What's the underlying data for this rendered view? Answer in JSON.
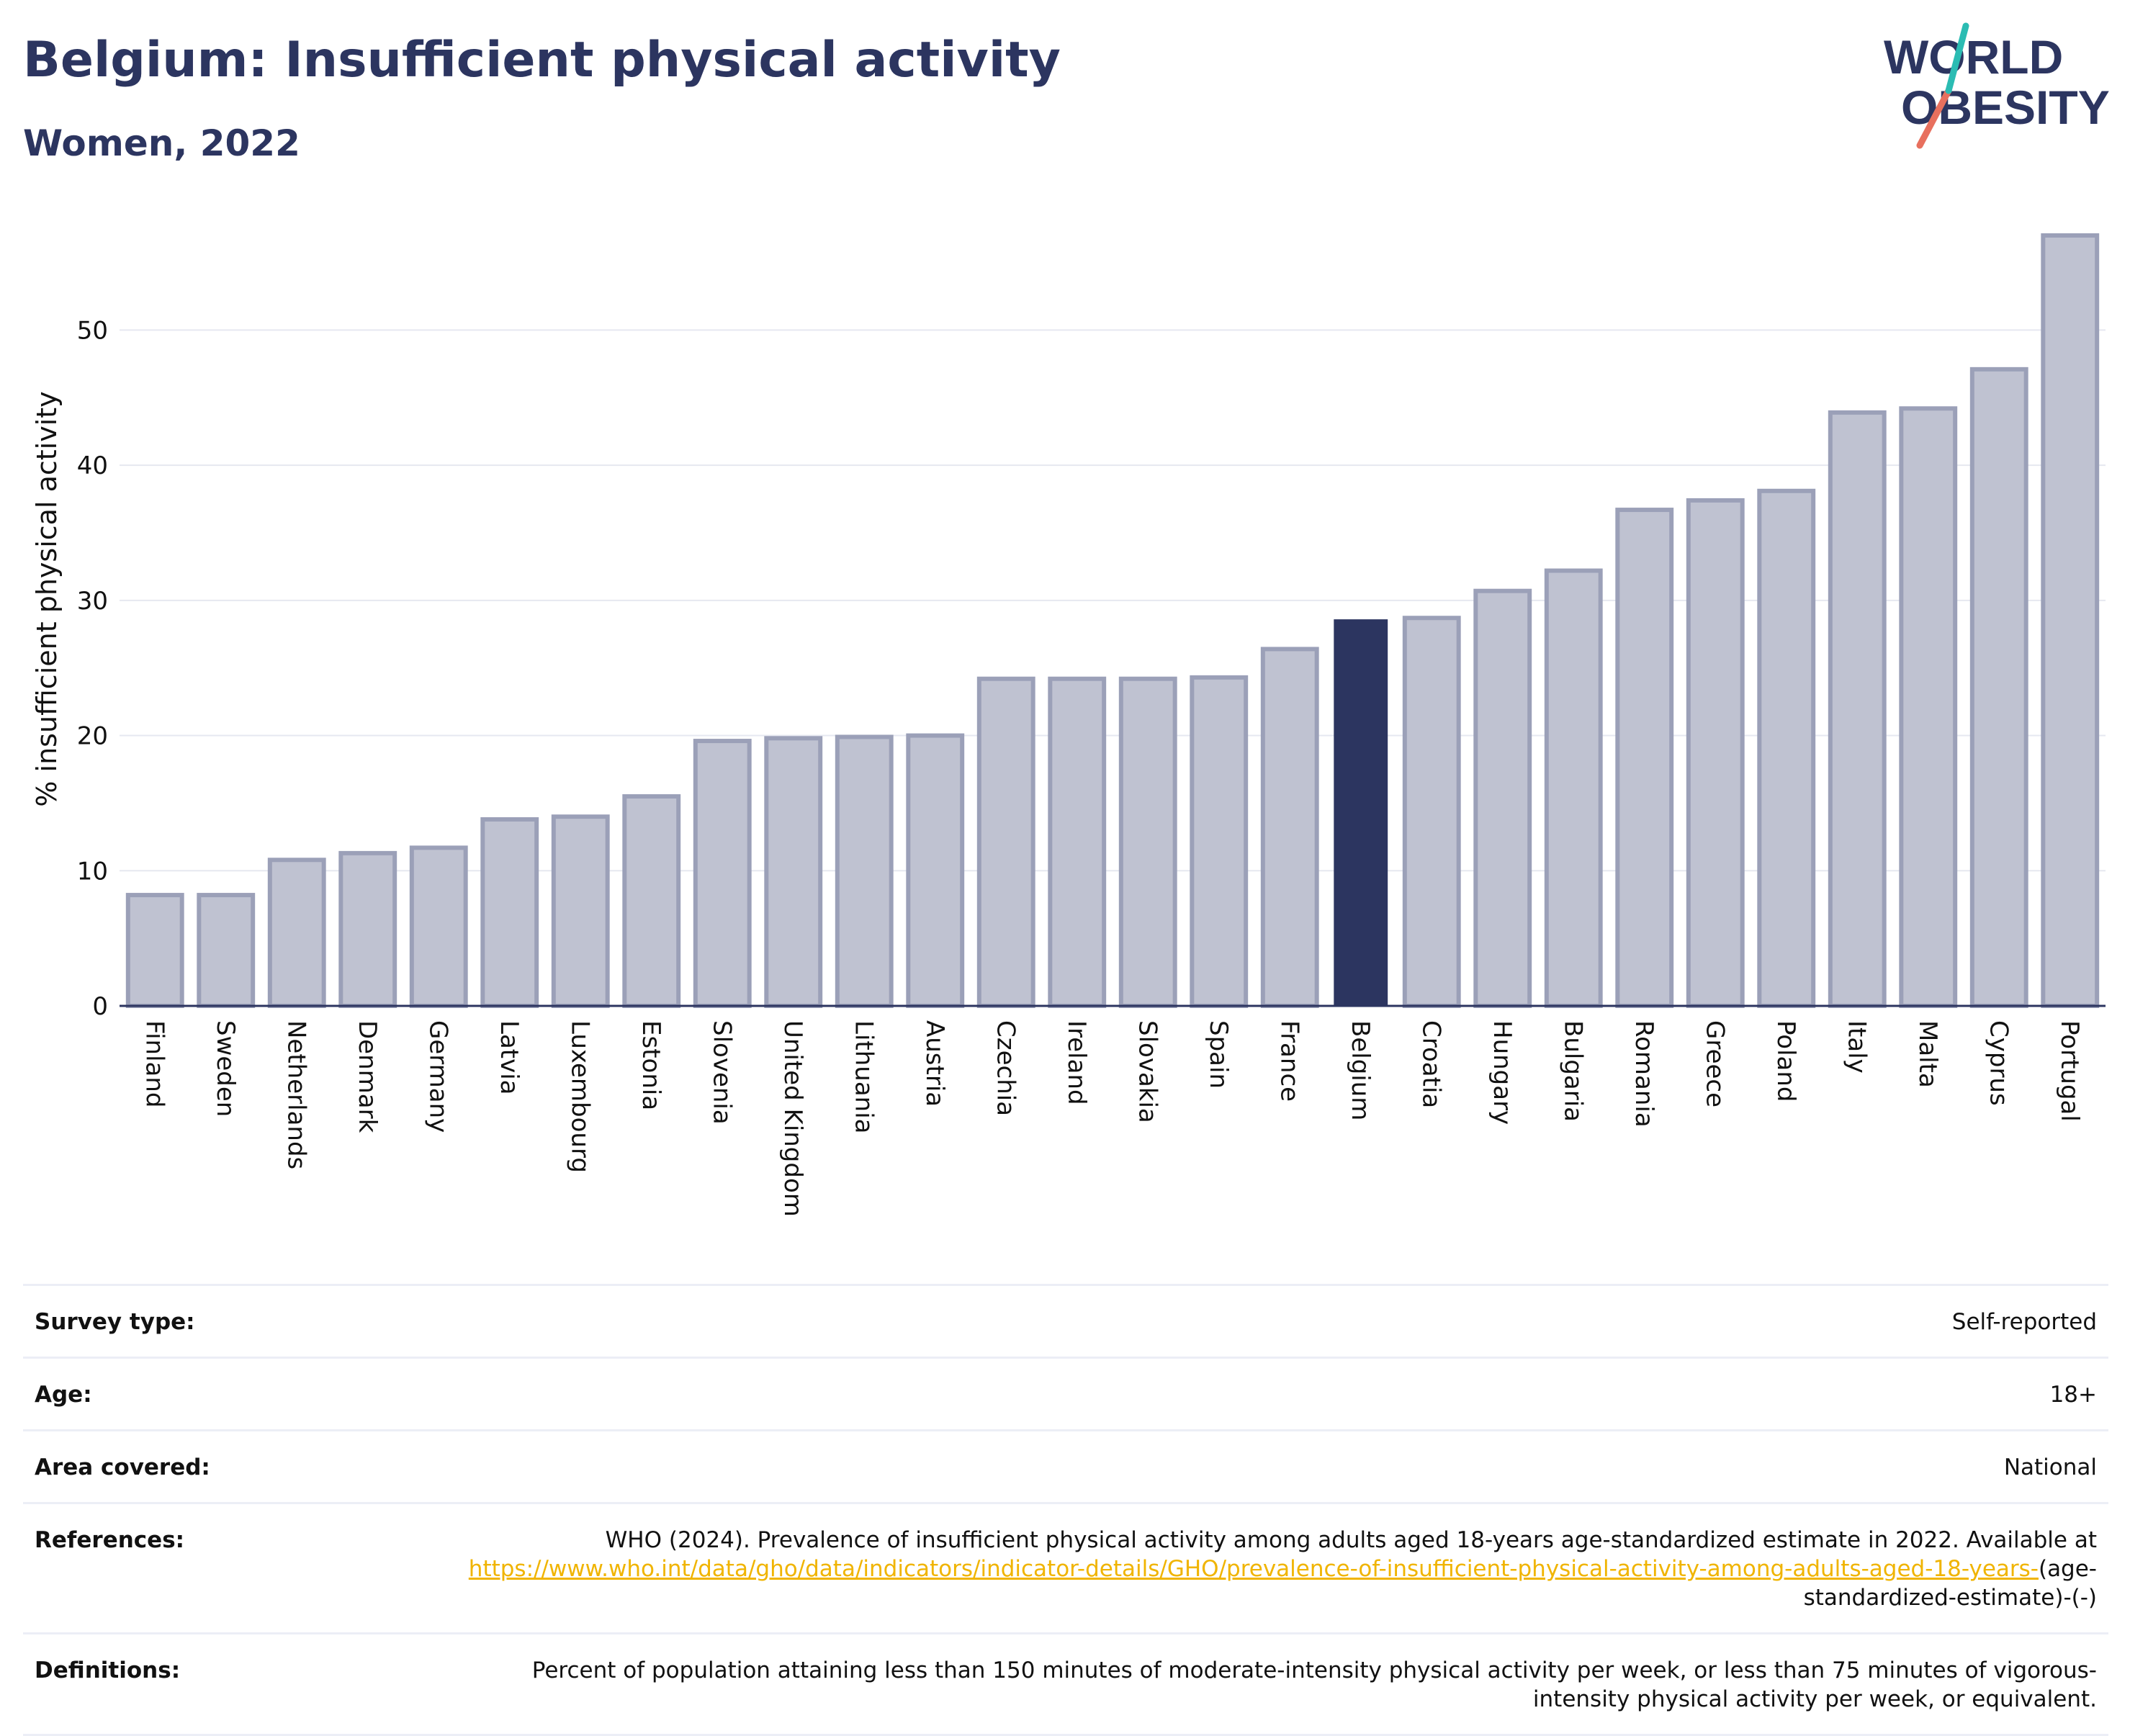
{
  "header": {
    "title": "Belgium: Insufficient physical activity",
    "subtitle": "Women, 2022"
  },
  "logo": {
    "line1": "WORLD",
    "line2": "OBESITY"
  },
  "colors": {
    "title": "#2c3560",
    "bar_fill": "#bfc2d1",
    "bar_stroke": "#9ba0b8",
    "highlight": "#2c3560",
    "logo_teal": "#2bbcb3",
    "logo_coral": "#e8705e"
  },
  "chart_data": {
    "type": "bar",
    "categories": [
      "Finland",
      "Sweden",
      "Netherlands",
      "Denmark",
      "Germany",
      "Latvia",
      "Luxembourg",
      "Estonia",
      "Slovenia",
      "United Kingdom",
      "Lithuania",
      "Austria",
      "Czechia",
      "Ireland",
      "Slovakia",
      "Spain",
      "France",
      "Belgium",
      "Croatia",
      "Hungary",
      "Bulgaria",
      "Romania",
      "Greece",
      "Poland",
      "Italy",
      "Malta",
      "Cyprus",
      "Portugal"
    ],
    "values": [
      8.2,
      8.2,
      10.8,
      11.3,
      11.7,
      13.8,
      14.0,
      15.5,
      19.6,
      19.8,
      19.9,
      20.0,
      24.2,
      24.2,
      24.2,
      24.3,
      26.4,
      28.6,
      28.7,
      30.7,
      32.2,
      36.7,
      37.4,
      38.1,
      43.9,
      44.2,
      47.1,
      57.0
    ],
    "highlight": "Belgium",
    "ylabel": "% insufficient physical activity",
    "yticks": [
      0,
      10,
      20,
      30,
      40,
      50
    ],
    "ylim": [
      0,
      57
    ],
    "grid": true
  },
  "info": {
    "rows": [
      {
        "key": "Survey type:",
        "value": "Self-reported"
      },
      {
        "key": "Age:",
        "value": "18+"
      },
      {
        "key": "Area covered:",
        "value": "National"
      },
      {
        "key": "References:",
        "value": "WHO (2024). Prevalence of insufficient physical activity among adults aged 18-years age-standardized estimate in 2022. Available at",
        "link": "https://www.who.int/data/gho/data/indicators/indicator-details/GHO/prevalence-of-insufficient-physical-activity-among-adults-aged-18-years-",
        "suffix": "(age-standardized-estimate)-(-)"
      },
      {
        "key": "Definitions:",
        "value": "Percent of population attaining less than 150 minutes of moderate-intensity physical activity per week, or less than 75 minutes of vigorous-intensity physical activity per week, or equivalent."
      }
    ]
  }
}
